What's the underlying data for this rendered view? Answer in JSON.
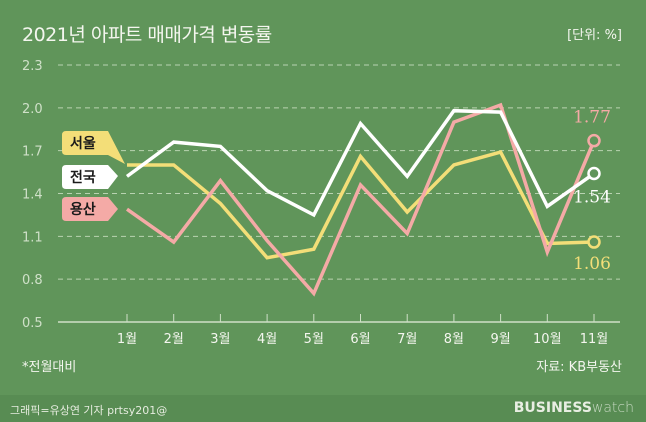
{
  "header": {
    "title": "2021년 아파트 매매가격 변동률",
    "unit": "[단위: %]"
  },
  "footer": {
    "note": "*전월대비",
    "source": "자료: KB부동산",
    "credit": "그래픽=유상연 기자 prtsy201@",
    "brand_bold": "BUSINESS",
    "brand_light": "watch"
  },
  "colors": {
    "background": "#60955a",
    "seoul": "#f3de78",
    "national": "#ffffff",
    "yongsan": "#f4aaa6",
    "grid": "#b9d3b1"
  },
  "chart_data": {
    "type": "line",
    "title": "2021년 아파트 매매가격 변동률",
    "unit": "[단위: %]",
    "categories": [
      "1월",
      "2월",
      "3월",
      "4월",
      "5월",
      "6월",
      "7월",
      "8월",
      "9월",
      "10월",
      "11월"
    ],
    "ylim": [
      0.5,
      2.3
    ],
    "yticks": [
      "2.3",
      "2.0",
      "1.7",
      "1.4",
      "1.1",
      "0.8",
      "0.5"
    ],
    "grid": true,
    "series": [
      {
        "name": "서울",
        "color": "#f3de78",
        "values": [
          1.6,
          1.6,
          1.33,
          0.95,
          1.01,
          1.66,
          1.27,
          1.6,
          1.69,
          1.05,
          1.06
        ],
        "end_label": "1.06"
      },
      {
        "name": "전국",
        "color": "#ffffff",
        "values": [
          1.52,
          1.76,
          1.73,
          1.42,
          1.25,
          1.89,
          1.52,
          1.98,
          1.97,
          1.31,
          1.54
        ],
        "end_label": "1.54"
      },
      {
        "name": "용산",
        "color": "#f4aaa6",
        "values": [
          1.29,
          1.06,
          1.49,
          1.07,
          0.7,
          1.46,
          1.12,
          1.9,
          2.02,
          0.99,
          1.77
        ],
        "end_label": "1.77"
      }
    ]
  }
}
